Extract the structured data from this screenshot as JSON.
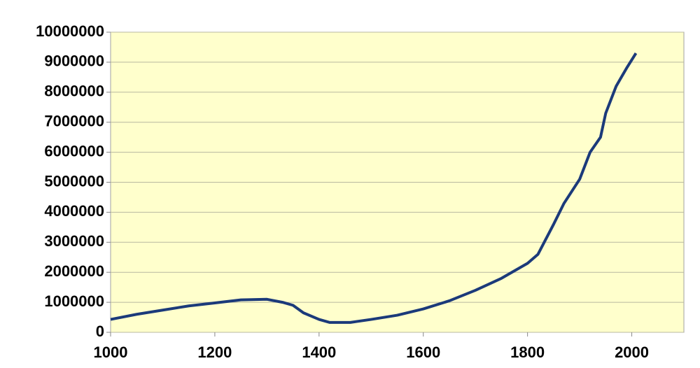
{
  "chart_data": {
    "type": "line",
    "x": [
      1000,
      1050,
      1100,
      1150,
      1200,
      1250,
      1300,
      1330,
      1350,
      1370,
      1400,
      1420,
      1460,
      1500,
      1550,
      1600,
      1650,
      1700,
      1750,
      1800,
      1820,
      1850,
      1870,
      1900,
      1920,
      1940,
      1950,
      1970,
      1990,
      2008
    ],
    "series": [
      {
        "color": "#1b3a7a",
        "values": [
          430000,
          600000,
          740000,
          880000,
          980000,
          1080000,
          1100000,
          1000000,
          900000,
          650000,
          430000,
          330000,
          330000,
          430000,
          570000,
          780000,
          1050000,
          1400000,
          1800000,
          2300000,
          2600000,
          3600000,
          4300000,
          5100000,
          6000000,
          6500000,
          7300000,
          8200000,
          8800000,
          9300000
        ]
      }
    ],
    "xlim": [
      1000,
      2100
    ],
    "xticks": [
      1000,
      1200,
      1400,
      1600,
      1800,
      2000
    ],
    "ylim": [
      0,
      10000000
    ],
    "yticks": [
      0,
      1000000,
      2000000,
      3000000,
      4000000,
      5000000,
      6000000,
      7000000,
      8000000,
      9000000,
      10000000
    ],
    "grid": true,
    "background": "#ffffcc"
  }
}
